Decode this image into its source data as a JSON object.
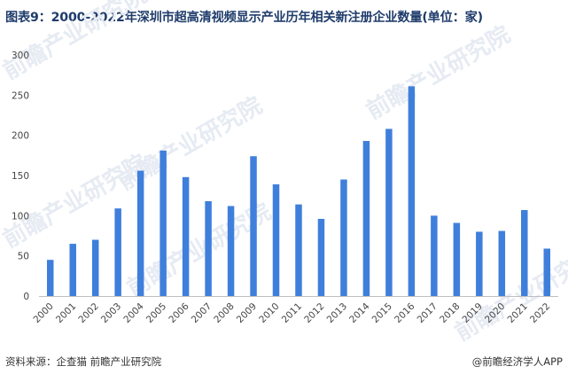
{
  "header": {
    "title": "图表9：2000-2022年深圳市超高清视频显示产业历年相关新注册企业数量(单位：家)"
  },
  "footer": {
    "source": "资料来源：企查猫 前瞻产业研究院",
    "brand": "@前瞻经济学人APP"
  },
  "watermark": {
    "text": "前瞻产业研究院"
  },
  "colors": {
    "bar": "#3f7fdc",
    "axis": "#bfbfbf",
    "title": "#1f3c6b"
  },
  "chart_data": {
    "type": "bar",
    "title": "图表9：2000-2022年深圳市超高清视频显示产业历年相关新注册企业数量(单位：家)",
    "xlabel": "",
    "ylabel": "",
    "ylim": [
      0,
      300
    ],
    "yticks": [
      0,
      50,
      100,
      150,
      200,
      250,
      300
    ],
    "grid": false,
    "legend": "none",
    "categories": [
      "2000",
      "2001",
      "2002",
      "2003",
      "2004",
      "2005",
      "2006",
      "2007",
      "2008",
      "2009",
      "2010",
      "2011",
      "2012",
      "2013",
      "2014",
      "2015",
      "2016",
      "2017",
      "2018",
      "2019",
      "2020",
      "2021",
      "2022"
    ],
    "values": [
      45,
      65,
      70,
      109,
      156,
      181,
      148,
      118,
      112,
      174,
      139,
      114,
      96,
      145,
      193,
      208,
      261,
      100,
      91,
      80,
      81,
      107,
      59
    ]
  }
}
